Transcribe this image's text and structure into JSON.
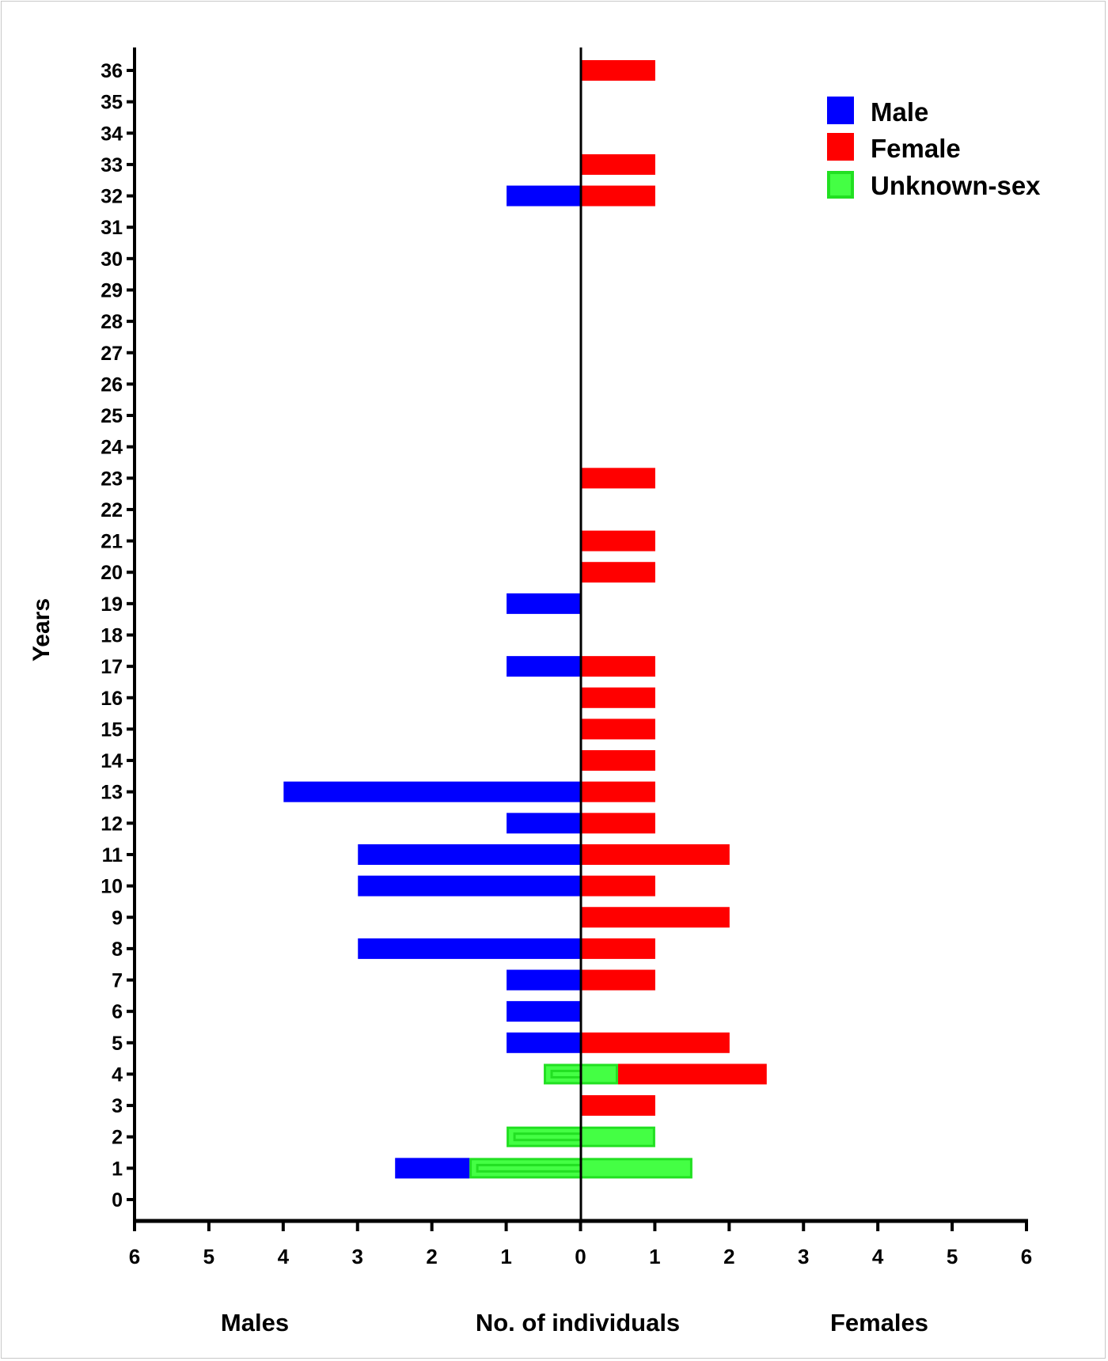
{
  "chart_data": {
    "type": "bar",
    "orientation": "horizontal",
    "layout": "population-pyramid",
    "ylabel": "Years",
    "xlabel": "No. of individuals",
    "left_label": "Males",
    "right_label": "Females",
    "xlim": [
      -6,
      6
    ],
    "ylim": [
      0,
      36
    ],
    "xticks": [
      "6",
      "5",
      "4",
      "3",
      "2",
      "1",
      "0",
      "1",
      "2",
      "3",
      "4",
      "5",
      "6"
    ],
    "yticks": [
      "0",
      "1",
      "2",
      "3",
      "4",
      "5",
      "6",
      "7",
      "8",
      "9",
      "10",
      "11",
      "12",
      "13",
      "14",
      "15",
      "16",
      "17",
      "18",
      "19",
      "20",
      "21",
      "22",
      "23",
      "24",
      "25",
      "26",
      "27",
      "28",
      "29",
      "30",
      "31",
      "32",
      "33",
      "34",
      "35",
      "36"
    ],
    "legend_position": "top-right",
    "legend": [
      "Male",
      "Female",
      "Unknown-sex"
    ],
    "colors": {
      "male": "#0000ff",
      "female": "#ff0000",
      "unknown": "#44ff44",
      "unknown_border": "#22e022"
    },
    "series": [
      {
        "name": "Male",
        "side": "left",
        "values": {
          "1": 1,
          "5": 1,
          "6": 1,
          "7": 1,
          "8": 3,
          "10": 3,
          "11": 3,
          "12": 1,
          "13": 4,
          "17": 1,
          "19": 1,
          "32": 1
        }
      },
      {
        "name": "Female",
        "side": "right",
        "values": {
          "3": 1,
          "4": 2,
          "5": 2,
          "7": 1,
          "8": 1,
          "9": 2,
          "10": 1,
          "11": 2,
          "12": 1,
          "13": 1,
          "14": 1,
          "15": 1,
          "16": 1,
          "17": 1,
          "20": 1,
          "21": 1,
          "23": 1,
          "32": 1,
          "33": 1,
          "36": 1
        }
      },
      {
        "name": "Unknown-sex",
        "side": "centered",
        "values": {
          "1": 3,
          "2": 2,
          "4": 1
        }
      }
    ]
  }
}
